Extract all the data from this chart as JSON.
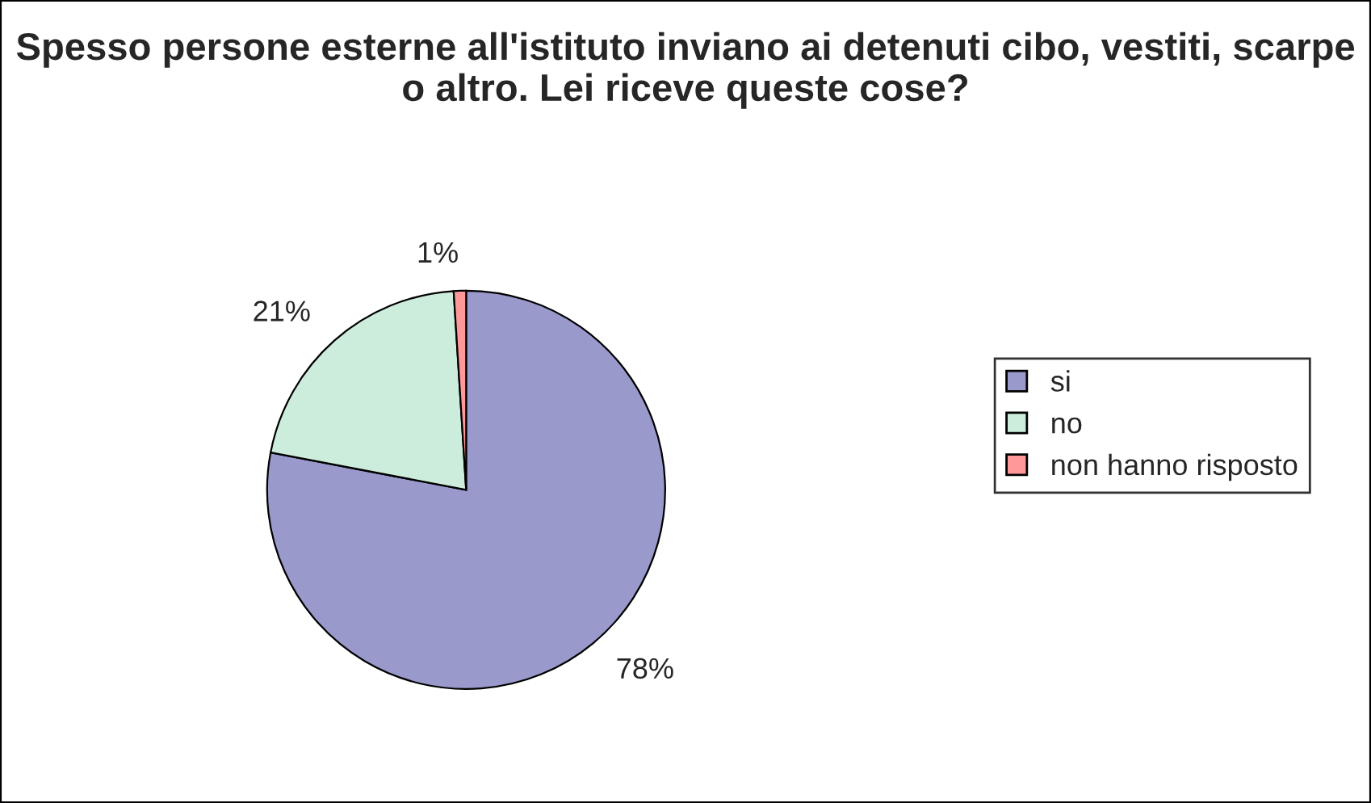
{
  "chart_data": {
    "type": "pie",
    "title": "Spesso persone esterne all'istituto inviano ai detenuti cibo, vestiti, scarpe o altro. Lei riceve queste cose?",
    "categories": [
      "si",
      "no",
      "non hanno risposto"
    ],
    "values": [
      78,
      21,
      1
    ],
    "colors": [
      "#9999cc",
      "#ccecdc",
      "#ff9999"
    ],
    "value_labels": [
      "78%",
      "21%",
      "1%"
    ],
    "legend": "right"
  }
}
